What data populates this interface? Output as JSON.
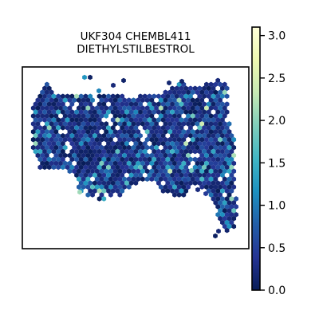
{
  "chart_data": {
    "type": "heatmap",
    "title_lines": [
      "UKF304 CHEMBL411",
      "DIETHYLSTILBESTROL"
    ],
    "xlabel": "",
    "ylabel": "",
    "colorbar": {
      "vmin": 0.0,
      "vmax": 3.1,
      "ticks": [
        0.0,
        0.5,
        1.0,
        1.5,
        2.0,
        2.5,
        3.0
      ],
      "tick_labels": [
        "0.0",
        "0.5",
        "1.0",
        "1.5",
        "2.0",
        "2.5",
        "3.0"
      ],
      "colormap": "YlGnBu",
      "colors": [
        "#ffffd9",
        "#edf8b1",
        "#c7e9b4",
        "#7fcdbb",
        "#41b6c4",
        "#1d91c0",
        "#225ea8",
        "#253494",
        "#081d58"
      ]
    },
    "marker": "hexagon",
    "background": "#ffffff",
    "frame_color": "#000000"
  }
}
